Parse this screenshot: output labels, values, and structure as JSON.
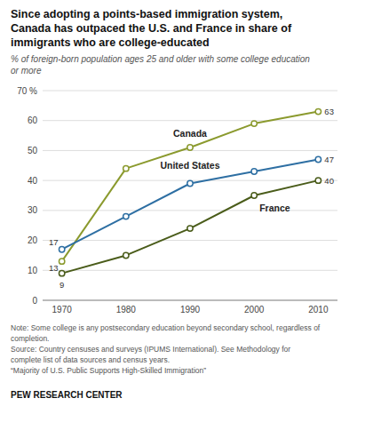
{
  "chart_data": {
    "type": "line",
    "title": "Since adopting a points-based immigration system,\nCanada has outpaced the U.S. and France in share of\nimmigrants who are college-educated",
    "subtitle": "% of foreign-born population ages 25 and older with some college education\nor more",
    "x": [
      1970,
      1980,
      1990,
      2000,
      2010
    ],
    "xlim": [
      1967,
      2013
    ],
    "xticks": [
      1970,
      1980,
      1990,
      2000,
      2010
    ],
    "ylim": [
      0,
      70
    ],
    "yticks": [
      0,
      10,
      20,
      30,
      40,
      50,
      60,
      {
        "value": 70,
        "label": "70 %"
      }
    ],
    "grid": true,
    "marker": "circle",
    "series": [
      {
        "name": "Canada",
        "color": "#8b9a2e",
        "values": [
          13,
          44,
          51,
          59,
          63
        ],
        "value_labels": [
          "13",
          null,
          null,
          null,
          "63"
        ]
      },
      {
        "name": "United States",
        "color": "#2e6fa3",
        "values": [
          17,
          28,
          39,
          43,
          47
        ],
        "value_labels": [
          "17",
          null,
          null,
          null,
          "47"
        ]
      },
      {
        "name": "France",
        "color": "#4a5c1a",
        "values": [
          9,
          15,
          24,
          35,
          40
        ],
        "value_labels": [
          "9",
          null,
          null,
          null,
          "40"
        ]
      }
    ],
    "notes": [
      "Note: Some college is any postsecondary education beyond secondary school, regardless of",
      "completion.",
      "Source: Country censuses and surveys (IPUMS International). See Methodology for",
      "complete list of data sources and census years.",
      "“Majority of U.S. Public Supports High-Skilled Immigration”"
    ],
    "credit": "PEW RESEARCH CENTER"
  }
}
